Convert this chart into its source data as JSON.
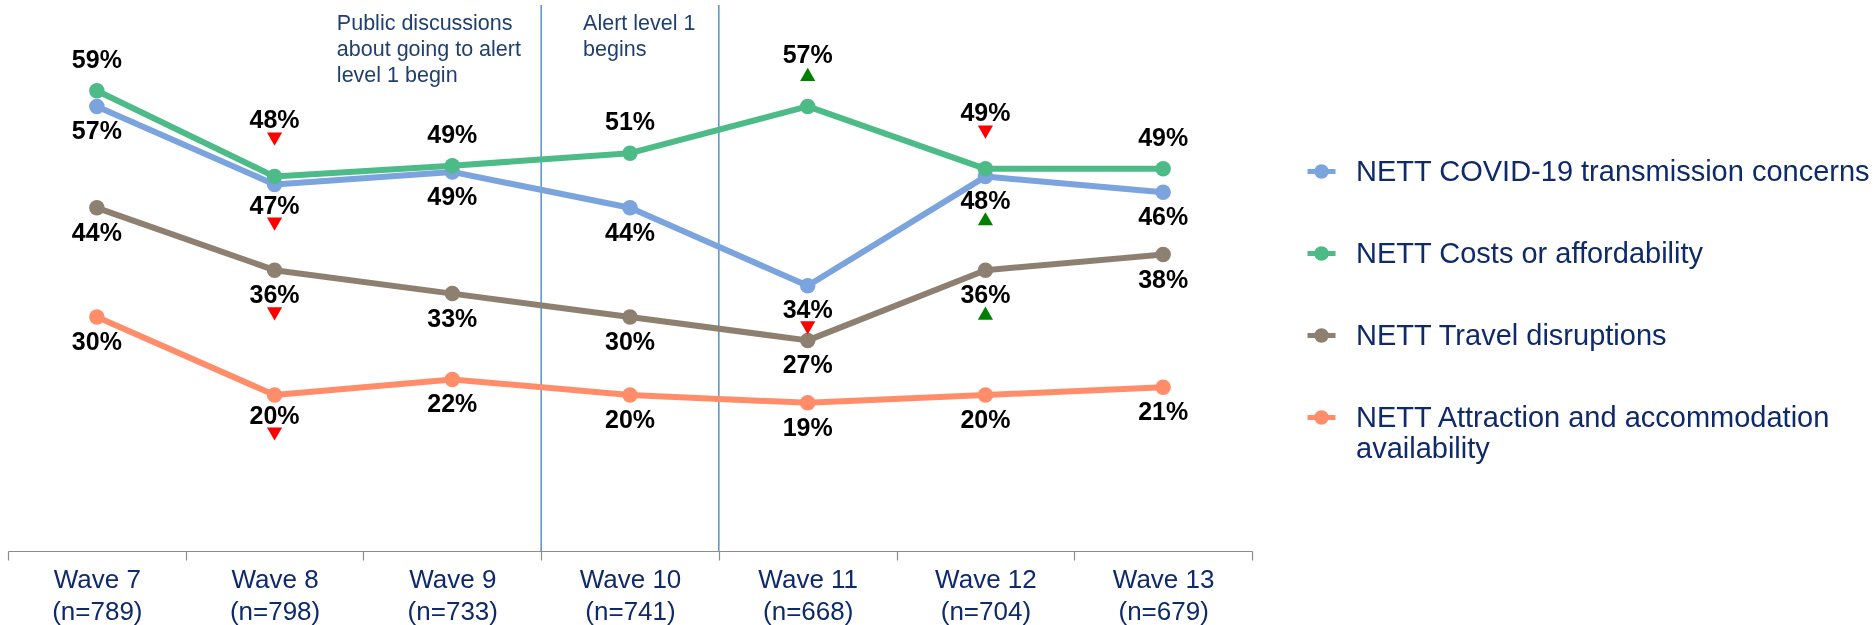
{
  "chart_data": {
    "type": "line",
    "categories": [
      "Wave 7\n(n=789)",
      "Wave 8\n(n=798)",
      "Wave 9\n(n=733)",
      "Wave 10\n(n=741)",
      "Wave 11\n(n=668)",
      "Wave 12\n(n=704)",
      "Wave 13\n(n=679)"
    ],
    "ylim": [
      0,
      70
    ],
    "tick_labels": "x",
    "marker": "circle",
    "legend": "right",
    "series": [
      {
        "name": "NETT COVID-19 transmission concerns",
        "color": "#7ba3dd",
        "values": [
          57,
          47,
          48.6,
          44,
          34,
          48,
          46
        ],
        "value_labels": [
          "57%",
          "47%",
          "49%",
          "44%",
          "34%",
          "48%",
          "46%"
        ]
      },
      {
        "name": "NETT Costs or affordability",
        "color": "#4dbb88",
        "values": [
          59,
          48,
          49.4,
          51,
          57,
          49,
          49
        ],
        "value_labels": [
          "59%",
          "48%",
          "49%",
          "51%",
          "57%",
          "49%",
          "49%"
        ]
      },
      {
        "name": "NETT Travel disruptions",
        "color": "#8e8070",
        "values": [
          44,
          36,
          33,
          30,
          27,
          36,
          38
        ],
        "value_labels": [
          "44%",
          "36%",
          "33%",
          "30%",
          "27%",
          "36%",
          "38%"
        ]
      },
      {
        "name": "NETT Attraction and accommodation\navailability",
        "color": "#ff8d6a",
        "values": [
          30,
          20,
          22,
          20,
          19,
          20,
          21
        ],
        "value_labels": [
          "30%",
          "20%",
          "22%",
          "20%",
          "19%",
          "20%",
          "21%"
        ]
      },
      {
        "type": "scatter",
        "color": "#ff0000",
        "marker": "triangle-down",
        "x": [
          "Wave 8\n(n=798)",
          "Wave 8\n(n=798)",
          "Wave 8\n(n=798)",
          "Wave 8\n(n=798)",
          "Wave 11\n(n=668)",
          "Wave 12\n(n=704)"
        ],
        "values": [
          52.8,
          41.9,
          30.4,
          15.0,
          28.6,
          53.7
        ]
      },
      {
        "type": "scatter",
        "color": "#008000",
        "marker": "triangle",
        "x": [
          "Wave 11\n(n=668)",
          "Wave 12\n(n=704)",
          "Wave 12\n(n=704)"
        ],
        "values": [
          61.1,
          42.6,
          30.5
        ]
      }
    ],
    "annotations": [
      "Public discussions\nabout going to alert\nlevel 1 begin",
      "Alert level 1\nbegins"
    ]
  }
}
